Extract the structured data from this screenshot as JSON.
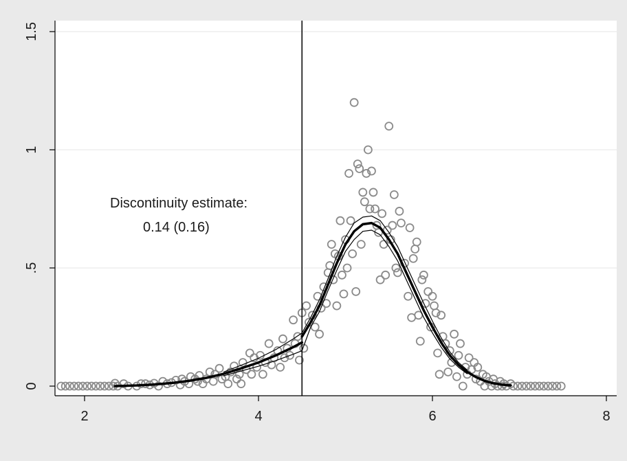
{
  "chart_data": {
    "type": "scatter",
    "title": "",
    "xlabel": "",
    "ylabel": "",
    "xlim": [
      1.6,
      8.0
    ],
    "ylim": [
      0,
      1.5
    ],
    "x_ticks": [
      2,
      4,
      6,
      8
    ],
    "x_tick_labels": [
      "2",
      "4",
      "6",
      "8"
    ],
    "y_ticks": [
      0,
      0.5,
      1,
      1.5
    ],
    "y_tick_labels": [
      "0",
      ".5",
      "1",
      "1.5"
    ],
    "grid": "horizontal",
    "cutoff": 4.5,
    "annotation": {
      "line1": "Discontinuity estimate:",
      "line2": "0.14 (0.16)"
    },
    "series": [
      {
        "kind": "scatter",
        "marker": "hollow-circle",
        "color": "#8a8a8a",
        "points": [
          [
            1.73,
            0
          ],
          [
            1.78,
            0
          ],
          [
            1.83,
            0
          ],
          [
            1.88,
            0
          ],
          [
            1.93,
            0
          ],
          [
            1.98,
            0
          ],
          [
            2.03,
            0
          ],
          [
            2.08,
            0
          ],
          [
            2.13,
            0
          ],
          [
            2.18,
            0
          ],
          [
            2.23,
            0
          ],
          [
            2.28,
            0
          ],
          [
            2.33,
            0
          ],
          [
            2.38,
            0
          ],
          [
            2.35,
            0.012
          ],
          [
            2.45,
            0.01
          ],
          [
            2.5,
            0
          ],
          [
            2.6,
            0
          ],
          [
            2.65,
            0.01
          ],
          [
            2.7,
            0.01
          ],
          [
            2.75,
            0.005
          ],
          [
            2.8,
            0.012
          ],
          [
            2.85,
            0
          ],
          [
            2.9,
            0.02
          ],
          [
            2.95,
            0.01
          ],
          [
            3.0,
            0.015
          ],
          [
            3.05,
            0.025
          ],
          [
            3.1,
            0.005
          ],
          [
            3.12,
            0.03
          ],
          [
            3.15,
            0.02
          ],
          [
            3.2,
            0.01
          ],
          [
            3.22,
            0.04
          ],
          [
            3.27,
            0.03
          ],
          [
            3.3,
            0.02
          ],
          [
            3.32,
            0.045
          ],
          [
            3.36,
            0.01
          ],
          [
            3.4,
            0.03
          ],
          [
            3.44,
            0.06
          ],
          [
            3.48,
            0.02
          ],
          [
            3.5,
            0.05
          ],
          [
            3.55,
            0.075
          ],
          [
            3.58,
            0.03
          ],
          [
            3.62,
            0.04
          ],
          [
            3.65,
            0.01
          ],
          [
            3.68,
            0.06
          ],
          [
            3.72,
            0.085
          ],
          [
            3.75,
            0.03
          ],
          [
            3.78,
            0.05
          ],
          [
            3.8,
            0.01
          ],
          [
            3.82,
            0.1
          ],
          [
            3.86,
            0.07
          ],
          [
            3.9,
            0.14
          ],
          [
            3.92,
            0.05
          ],
          [
            3.95,
            0.12
          ],
          [
            3.98,
            0.08
          ],
          [
            4.02,
            0.13
          ],
          [
            4.05,
            0.05
          ],
          [
            4.08,
            0.1
          ],
          [
            4.12,
            0.18
          ],
          [
            4.15,
            0.09
          ],
          [
            4.18,
            0.12
          ],
          [
            4.22,
            0.15
          ],
          [
            4.25,
            0.08
          ],
          [
            4.28,
            0.2
          ],
          [
            4.3,
            0.12
          ],
          [
            4.33,
            0.16
          ],
          [
            4.36,
            0.13
          ],
          [
            4.4,
            0.28
          ],
          [
            4.42,
            0.18
          ],
          [
            4.45,
            0.21
          ],
          [
            4.47,
            0.11
          ],
          [
            4.5,
            0.31
          ],
          [
            4.52,
            0.16
          ],
          [
            4.55,
            0.34
          ],
          [
            4.58,
            0.27
          ],
          [
            4.62,
            0.3
          ],
          [
            4.65,
            0.25
          ],
          [
            4.68,
            0.38
          ],
          [
            4.7,
            0.22
          ],
          [
            4.72,
            0.33
          ],
          [
            4.75,
            0.42
          ],
          [
            4.78,
            0.35
          ],
          [
            4.8,
            0.48
          ],
          [
            4.82,
            0.51
          ],
          [
            4.84,
            0.6
          ],
          [
            4.86,
            0.45
          ],
          [
            4.88,
            0.56
          ],
          [
            4.9,
            0.34
          ],
          [
            4.92,
            0.55
          ],
          [
            4.94,
            0.7
          ],
          [
            4.96,
            0.47
          ],
          [
            4.98,
            0.39
          ],
          [
            5.0,
            0.62
          ],
          [
            5.02,
            0.5
          ],
          [
            5.04,
            0.9
          ],
          [
            5.06,
            0.7
          ],
          [
            5.08,
            0.56
          ],
          [
            5.1,
            1.2
          ],
          [
            5.12,
            0.4
          ],
          [
            5.14,
            0.94
          ],
          [
            5.16,
            0.92
          ],
          [
            5.18,
            0.6
          ],
          [
            5.2,
            0.82
          ],
          [
            5.22,
            0.78
          ],
          [
            5.24,
            0.9
          ],
          [
            5.26,
            1.0
          ],
          [
            5.28,
            0.75
          ],
          [
            5.3,
            0.91
          ],
          [
            5.32,
            0.82
          ],
          [
            5.34,
            0.75
          ],
          [
            5.36,
            0.68
          ],
          [
            5.38,
            0.65
          ],
          [
            5.4,
            0.45
          ],
          [
            5.42,
            0.73
          ],
          [
            5.44,
            0.6
          ],
          [
            5.46,
            0.47
          ],
          [
            5.48,
            0.66
          ],
          [
            5.5,
            1.1
          ],
          [
            5.52,
            0.62
          ],
          [
            5.54,
            0.68
          ],
          [
            5.56,
            0.81
          ],
          [
            5.58,
            0.5
          ],
          [
            5.6,
            0.48
          ],
          [
            5.62,
            0.74
          ],
          [
            5.64,
            0.69
          ],
          [
            5.68,
            0.52
          ],
          [
            5.72,
            0.38
          ],
          [
            5.74,
            0.67
          ],
          [
            5.76,
            0.29
          ],
          [
            5.78,
            0.54
          ],
          [
            5.8,
            0.58
          ],
          [
            5.82,
            0.61
          ],
          [
            5.84,
            0.3
          ],
          [
            5.86,
            0.19
          ],
          [
            5.88,
            0.45
          ],
          [
            5.9,
            0.47
          ],
          [
            5.92,
            0.35
          ],
          [
            5.95,
            0.4
          ],
          [
            5.98,
            0.25
          ],
          [
            6.0,
            0.38
          ],
          [
            6.02,
            0.34
          ],
          [
            6.04,
            0.31
          ],
          [
            6.06,
            0.14
          ],
          [
            6.08,
            0.05
          ],
          [
            6.1,
            0.3
          ],
          [
            6.12,
            0.21
          ],
          [
            6.15,
            0.18
          ],
          [
            6.18,
            0.06
          ],
          [
            6.2,
            0.15
          ],
          [
            6.22,
            0.1
          ],
          [
            6.25,
            0.22
          ],
          [
            6.28,
            0.04
          ],
          [
            6.3,
            0.13
          ],
          [
            6.32,
            0.18
          ],
          [
            6.35,
            0.0
          ],
          [
            6.38,
            0.08
          ],
          [
            6.4,
            0.05
          ],
          [
            6.42,
            0.12
          ],
          [
            6.45,
            0.07
          ],
          [
            6.48,
            0.1
          ],
          [
            6.5,
            0.03
          ],
          [
            6.52,
            0.08
          ],
          [
            6.55,
            0.02
          ],
          [
            6.58,
            0.05
          ],
          [
            6.6,
            0.0
          ],
          [
            6.62,
            0.04
          ],
          [
            6.65,
            0.02
          ],
          [
            6.68,
            0.0
          ],
          [
            6.7,
            0.03
          ],
          [
            6.72,
            0.01
          ],
          [
            6.75,
            0.0
          ],
          [
            6.78,
            0.02
          ],
          [
            6.8,
            0.0
          ],
          [
            6.82,
            0.01
          ],
          [
            6.85,
            0.0
          ],
          [
            6.9,
            0.01
          ],
          [
            6.93,
            0
          ],
          [
            6.98,
            0
          ],
          [
            7.03,
            0
          ],
          [
            7.08,
            0
          ],
          [
            7.13,
            0
          ],
          [
            7.18,
            0
          ],
          [
            7.23,
            0
          ],
          [
            7.28,
            0
          ],
          [
            7.33,
            0
          ],
          [
            7.38,
            0
          ],
          [
            7.43,
            0
          ],
          [
            7.48,
            0
          ]
        ]
      },
      {
        "kind": "line",
        "role": "fit-left",
        "color": "#000000",
        "points": [
          [
            2.35,
            0.0
          ],
          [
            2.6,
            0.003
          ],
          [
            2.8,
            0.007
          ],
          [
            3.0,
            0.013
          ],
          [
            3.2,
            0.022
          ],
          [
            3.4,
            0.035
          ],
          [
            3.6,
            0.052
          ],
          [
            3.8,
            0.075
          ],
          [
            4.0,
            0.1
          ],
          [
            4.2,
            0.13
          ],
          [
            4.4,
            0.165
          ],
          [
            4.5,
            0.185
          ]
        ]
      },
      {
        "kind": "line",
        "role": "fit-right",
        "color": "#000000",
        "points": [
          [
            4.5,
            0.21
          ],
          [
            4.6,
            0.27
          ],
          [
            4.7,
            0.34
          ],
          [
            4.8,
            0.43
          ],
          [
            4.9,
            0.52
          ],
          [
            5.0,
            0.6
          ],
          [
            5.1,
            0.655
          ],
          [
            5.2,
            0.685
          ],
          [
            5.3,
            0.69
          ],
          [
            5.4,
            0.67
          ],
          [
            5.5,
            0.62
          ],
          [
            5.6,
            0.56
          ],
          [
            5.7,
            0.48
          ],
          [
            5.8,
            0.4
          ],
          [
            5.9,
            0.32
          ],
          [
            6.0,
            0.25
          ],
          [
            6.1,
            0.185
          ],
          [
            6.2,
            0.13
          ],
          [
            6.3,
            0.09
          ],
          [
            6.4,
            0.06
          ],
          [
            6.5,
            0.038
          ],
          [
            6.6,
            0.022
          ],
          [
            6.7,
            0.012
          ],
          [
            6.8,
            0.006
          ],
          [
            6.9,
            0.003
          ]
        ]
      },
      {
        "kind": "line",
        "role": "ci-upper",
        "color": "#000000",
        "points": [
          [
            3.6,
            0.06
          ],
          [
            3.8,
            0.088
          ],
          [
            4.0,
            0.118
          ],
          [
            4.2,
            0.155
          ],
          [
            4.4,
            0.2
          ],
          [
            4.5,
            0.225
          ],
          [
            4.6,
            0.29
          ],
          [
            4.7,
            0.365
          ],
          [
            4.8,
            0.455
          ],
          [
            4.9,
            0.55
          ],
          [
            5.0,
            0.63
          ],
          [
            5.1,
            0.69
          ],
          [
            5.2,
            0.715
          ],
          [
            5.3,
            0.72
          ],
          [
            5.4,
            0.7
          ],
          [
            5.5,
            0.65
          ],
          [
            5.6,
            0.59
          ],
          [
            5.7,
            0.51
          ],
          [
            5.8,
            0.43
          ],
          [
            5.9,
            0.35
          ],
          [
            6.0,
            0.275
          ],
          [
            6.1,
            0.205
          ],
          [
            6.2,
            0.145
          ],
          [
            6.3,
            0.1
          ],
          [
            6.4,
            0.068
          ]
        ]
      },
      {
        "kind": "line",
        "role": "ci-lower",
        "color": "#000000",
        "points": [
          [
            3.6,
            0.044
          ],
          [
            3.8,
            0.064
          ],
          [
            4.0,
            0.084
          ],
          [
            4.2,
            0.108
          ],
          [
            4.4,
            0.135
          ],
          [
            4.5,
            0.15
          ],
          [
            4.6,
            0.25
          ],
          [
            4.7,
            0.315
          ],
          [
            4.8,
            0.405
          ],
          [
            4.9,
            0.49
          ],
          [
            5.0,
            0.57
          ],
          [
            5.1,
            0.62
          ],
          [
            5.2,
            0.655
          ],
          [
            5.3,
            0.66
          ],
          [
            5.4,
            0.64
          ],
          [
            5.5,
            0.59
          ],
          [
            5.6,
            0.53
          ],
          [
            5.7,
            0.45
          ],
          [
            5.8,
            0.37
          ],
          [
            5.9,
            0.29
          ],
          [
            6.0,
            0.225
          ],
          [
            6.1,
            0.165
          ],
          [
            6.2,
            0.115
          ],
          [
            6.3,
            0.08
          ],
          [
            6.4,
            0.052
          ]
        ]
      }
    ]
  }
}
